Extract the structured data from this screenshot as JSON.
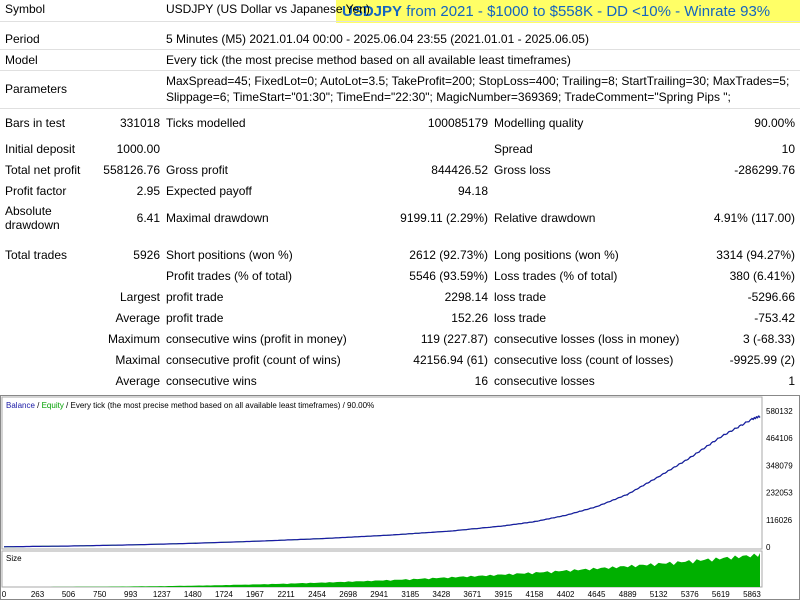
{
  "banner": {
    "pair": "USDJPY",
    "rest": " from 2021 - $1000 to $558K - DD <10% - Winrate 93%"
  },
  "info": {
    "symbol_label": "Symbol",
    "symbol_value": "USDJPY (US Dollar vs Japanese Yen)",
    "period_label": "Period",
    "period_value": "5 Minutes (M5) 2021.01.04 00:00 - 2025.06.04 23:55 (2021.01.01 - 2025.06.05)",
    "model_label": "Model",
    "model_value": "Every tick (the most precise method based on all available least timeframes)",
    "params_label": "Parameters",
    "params_line1": "MaxSpread=45; FixedLot=0; AutoLot=3.5; TakeProfit=200; StopLoss=400; Trailing=8; StartTrailing=30; MaxTrades=5;",
    "params_line2": "Slippage=6; TimeStart=\"01:30\"; TimeEnd=\"22:30\"; MagicNumber=369369; TradeComment=\"Spring Pips \";"
  },
  "stats": {
    "bars_label": "Bars in test",
    "bars_value": "331018",
    "ticks_label": "Ticks modelled",
    "ticks_value": "100085179",
    "quality_label": "Modelling quality",
    "quality_value": "90.00%",
    "deposit_label": "Initial deposit",
    "deposit_value": "1000.00",
    "spread_label": "Spread",
    "spread_value": "10",
    "netprofit_label": "Total net profit",
    "netprofit_value": "558126.76",
    "grossprofit_label": "Gross profit",
    "grossprofit_value": "844426.52",
    "grossloss_label": "Gross loss",
    "grossloss_value": "-286299.76",
    "pf_label": "Profit factor",
    "pf_value": "2.95",
    "payoff_label": "Expected payoff",
    "payoff_value": "94.18",
    "absdd_label1": "Absolute",
    "absdd_label2": "drawdown",
    "absdd_value": "6.41",
    "maxdd_label": "Maximal drawdown",
    "maxdd_value": "9199.11 (2.29%)",
    "reldd_label": "Relative drawdown",
    "reldd_value": "4.91% (117.00)",
    "trades_label": "Total trades",
    "trades_value": "5926",
    "short_label": "Short positions (won %)",
    "short_value": "2612 (92.73%)",
    "long_label": "Long positions (won %)",
    "long_value": "3314 (94.27%)",
    "profittrades_label": "Profit trades (% of total)",
    "profittrades_value": "5546 (93.59%)",
    "losstrades_label": "Loss trades (% of total)",
    "losstrades_value": "380 (6.41%)",
    "largest_prefix": "Largest",
    "largest_profit_label": "profit trade",
    "largest_profit_value": "2298.14",
    "largest_loss_label": "loss trade",
    "largest_loss_value": "-5296.66",
    "average_prefix": "Average",
    "avg_profit_label": "profit trade",
    "avg_profit_value": "152.26",
    "avg_loss_label": "loss trade",
    "avg_loss_value": "-753.42",
    "maximum_prefix": "Maximum",
    "max_wins_label": "consecutive wins (profit in money)",
    "max_wins_value": "119 (227.87)",
    "max_losses_label": "consecutive losses (loss in money)",
    "max_losses_value": "3 (-68.33)",
    "maximal_prefix": "Maximal",
    "maximal_profit_label": "consecutive profit (count of wins)",
    "maximal_profit_value": "42156.94 (61)",
    "maximal_loss_label": "consecutive loss (count of losses)",
    "maximal_loss_value": "-9925.99 (2)",
    "average2_prefix": "Average",
    "avg_wins_label": "consecutive wins",
    "avg_wins_value": "16",
    "avg_losses_label": "consecutive losses",
    "avg_losses_value": "1"
  },
  "chart_data": {
    "type": "line",
    "legend_balance": "Balance",
    "legend_sep": " / ",
    "legend_equity": "Equity",
    "legend_rest": " / Every tick (the most precise method based on all available least timeframes) / 90.00%",
    "size_label": "Size",
    "y_ticks": [
      "580132",
      "464106",
      "348079",
      "232053",
      "116026",
      "0"
    ],
    "x_ticks": [
      "0",
      "263",
      "506",
      "750",
      "993",
      "1237",
      "1480",
      "1724",
      "1967",
      "2211",
      "2454",
      "2698",
      "2941",
      "3185",
      "3428",
      "3671",
      "3915",
      "4158",
      "4402",
      "4645",
      "4889",
      "5132",
      "5376",
      "5619",
      "5863"
    ],
    "ylim": [
      0,
      580132
    ],
    "xlim": [
      0,
      5926
    ],
    "series": [
      {
        "name": "Balance",
        "x": [
          0,
          500,
          1000,
          1500,
          2000,
          2500,
          3000,
          3500,
          3915,
          4158,
          4402,
          4645,
          4889,
          5132,
          5376,
          5619,
          5863,
          5926
        ],
        "values": [
          1000,
          4000,
          9000,
          16000,
          25000,
          36000,
          50000,
          68000,
          90000,
          108000,
          135000,
          172000,
          225000,
          300000,
          380000,
          470000,
          545000,
          558127
        ]
      }
    ],
    "colors": {
      "balance": "#1a1aa6",
      "equity": "#00a000",
      "size": "#00b000"
    }
  }
}
